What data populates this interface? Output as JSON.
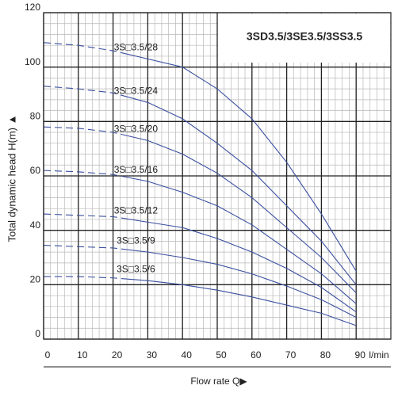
{
  "chart_data": {
    "type": "line",
    "title": "3SD3.5/3SE3.5/3SS3.5",
    "x_label": "Flow  rate Q▶",
    "x_unit": "l/min",
    "y_label": "Total dynamic head H(m) ▲",
    "x": [
      0,
      10,
      20,
      30,
      40,
      50,
      60,
      70,
      80,
      90
    ],
    "xlim": [
      0,
      100
    ],
    "xticks": [
      0,
      10,
      20,
      30,
      40,
      50,
      60,
      70,
      80,
      90
    ],
    "ylim": [
      0,
      120
    ],
    "yticks": [
      0,
      20,
      40,
      60,
      80,
      100,
      120
    ],
    "grid": true,
    "minor_grid_step": {
      "x": 2,
      "y": 4
    },
    "dashed_to_x": 20,
    "series": [
      {
        "name": "3S□3.5/28",
        "color": "#3a4fa0",
        "values": [
          109,
          108,
          106,
          103,
          100,
          92,
          81,
          65,
          46,
          25
        ]
      },
      {
        "name": "3S□3.5/24",
        "color": "#3a4fa0",
        "values": [
          93,
          92,
          90.5,
          87,
          81,
          72,
          62,
          49,
          36,
          20
        ]
      },
      {
        "name": "3S□3.5/20",
        "color": "#3a4fa0",
        "values": [
          78,
          77.5,
          76,
          73,
          68,
          61,
          52,
          41,
          30,
          17
        ]
      },
      {
        "name": "3S□3.5/16",
        "color": "#3a4fa0",
        "values": [
          62,
          61.5,
          60.5,
          58,
          54,
          49,
          42,
          33,
          24,
          13
        ]
      },
      {
        "name": "3S□3.5/12",
        "color": "#3a4fa0",
        "values": [
          46,
          45.5,
          45,
          43,
          41,
          37,
          32,
          26,
          19,
          10
        ]
      },
      {
        "name": "3S□3.5/9",
        "color": "#3a4fa0",
        "values": [
          34.5,
          34,
          33.5,
          32,
          30,
          27.5,
          24,
          19.5,
          14.5,
          8
        ]
      },
      {
        "name": "3S□3.5/6",
        "color": "#3a4fa0",
        "values": [
          23,
          23,
          22.5,
          21.5,
          20,
          18,
          15.5,
          12.5,
          9.5,
          5
        ]
      }
    ]
  }
}
